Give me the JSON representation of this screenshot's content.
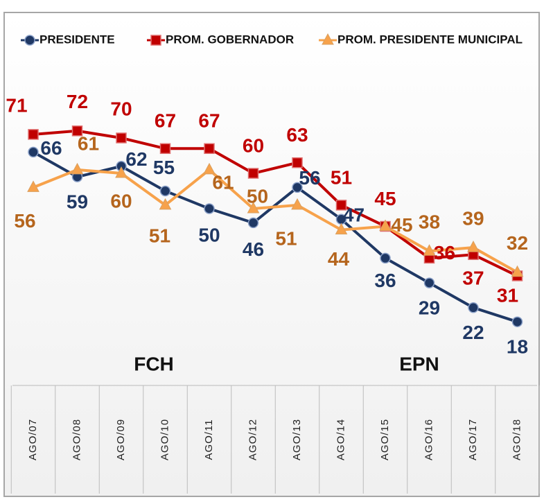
{
  "chart_data": {
    "type": "line",
    "categories": [
      "AGO/07",
      "AGO/08",
      "AGO/09",
      "AGO/10",
      "AGO/11",
      "AGO/12",
      "AGO/13",
      "AGO/14",
      "AGO/15",
      "AGO/16",
      "AGO/17",
      "AGO/18"
    ],
    "series": [
      {
        "name": "PRESIDENTE",
        "color": "#1f3864",
        "label_color": "#1f3864",
        "marker": "circle",
        "values": [
          66,
          59,
          62,
          55,
          50,
          46,
          56,
          47,
          36,
          29,
          22,
          18
        ]
      },
      {
        "name": "PROM. GOBERNADOR",
        "color": "#c00000",
        "label_color": "#c00000",
        "marker": "square",
        "values": [
          71,
          72,
          70,
          67,
          67,
          60,
          63,
          51,
          45,
          36,
          37,
          31
        ]
      },
      {
        "name": "PROM. PRESIDENTE MUNICIPAL",
        "color": "#f7a24b",
        "label_color": "#b5651d",
        "marker": "triangle",
        "values": [
          56,
          61,
          60,
          51,
          61,
          50,
          51,
          44,
          45,
          38,
          39,
          32
        ]
      }
    ],
    "annotations": [
      "FCH",
      "EPN"
    ],
    "legend": "top"
  }
}
